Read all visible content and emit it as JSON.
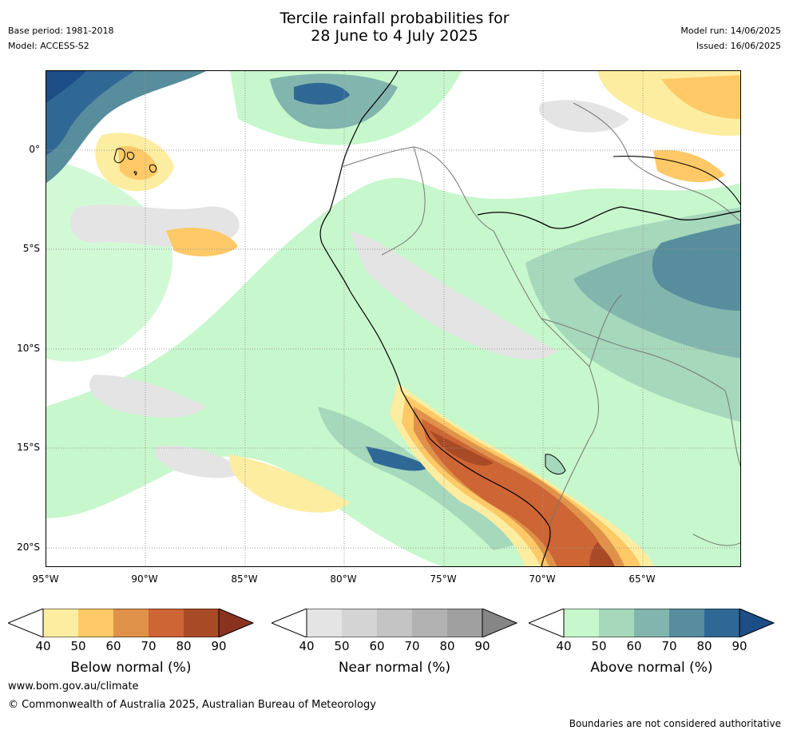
{
  "header": {
    "title_line1": "Tercile rainfall probabilities for",
    "title_line2": "28 June to 4 July 2025",
    "base_period": "Base period: 1981-2018",
    "model": "Model: ACCESS-S2",
    "model_run": "Model run: 14/06/2025",
    "issued": "Issued: 16/06/2025"
  },
  "map": {
    "lat_labels": [
      "0°",
      "5°S",
      "10°S",
      "15°S",
      "20°S"
    ],
    "lon_labels": [
      "95°W",
      "90°W",
      "85°W",
      "80°W",
      "75°W",
      "70°W",
      "65°W"
    ],
    "gridlines": true
  },
  "colorbars": [
    {
      "title": "Below normal (%)",
      "ticks": [
        "40",
        "50",
        "60",
        "70",
        "80",
        "90"
      ],
      "colors": [
        "#fdeda0",
        "#fec966",
        "#e0924a",
        "#cd6534",
        "#a94a26",
        "#8a3220"
      ]
    },
    {
      "title": "Near normal (%)",
      "ticks": [
        "40",
        "50",
        "60",
        "70",
        "80",
        "90"
      ],
      "colors": [
        "#e4e4e4",
        "#d4d4d4",
        "#c4c4c4",
        "#b2b2b2",
        "#a0a0a0",
        "#868686"
      ]
    },
    {
      "title": "Above normal (%)",
      "ticks": [
        "40",
        "50",
        "60",
        "70",
        "80",
        "90"
      ],
      "colors": [
        "#c7f7cc",
        "#a6d8bb",
        "#82b5ad",
        "#578d9c",
        "#306895",
        "#1c4d86"
      ]
    }
  ],
  "footer": {
    "url": "www.bom.gov.au/climate",
    "copyright": "© Commonwealth of Australia 2025, Australian Bureau of Meteorology",
    "disclaimer": "Boundaries are not considered authoritative"
  }
}
